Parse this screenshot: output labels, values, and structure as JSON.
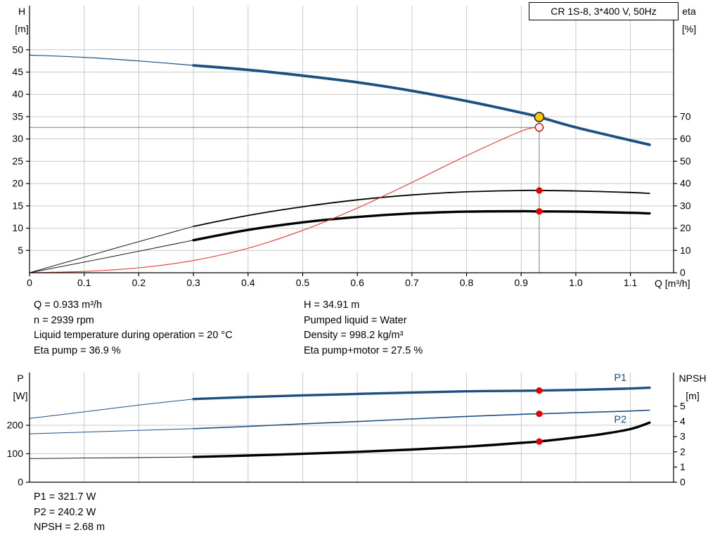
{
  "axis_titles": {
    "h": [
      "H",
      "[m]"
    ],
    "eta": [
      "eta",
      "[%]"
    ],
    "p": [
      "P",
      "[W]"
    ],
    "npsh": [
      "NPSH",
      "[m]"
    ],
    "q": "Q [m³/h]"
  },
  "info_block": {
    "left": [
      "Q = 0.933 m³/h",
      "n = 2939 rpm",
      "Liquid temperature during operation = 20 °C",
      "Eta pump = 36.9 %"
    ],
    "right": [
      "H = 34.91 m",
      "Pumped liquid = Water",
      "Density = 998.2 kg/m³",
      "Eta pump+motor = 27.5 %"
    ]
  },
  "result_block": [
    "P1 = 321.7 W",
    "P2 = 240.2 W",
    "NPSH = 2.68 m"
  ],
  "colors": {
    "blue": "#1d5082",
    "black": "#000000",
    "red": "#e03a2e",
    "grid": "#c9c9c9",
    "axis": "#000000",
    "guide": "#7d7d7d",
    "marker_red": "#e60000",
    "marker_yellow": "#ffc800",
    "marker_ring": "#333333",
    "text": "#000000"
  },
  "chart_data": [
    {
      "type": "line",
      "name": "performance-chart",
      "title": "CR 1S-8, 3*400 V, 50Hz",
      "area": {
        "l": 42,
        "r": 958,
        "t": 8,
        "b": 388
      },
      "x": {
        "label": "Q [m³/h]",
        "min": 0,
        "max": 1.179,
        "show_ticks": true,
        "ticks": [
          [
            0,
            "0"
          ],
          [
            0.1,
            "0.1"
          ],
          [
            0.2,
            "0.2"
          ],
          [
            0.3,
            "0.3"
          ],
          [
            0.4,
            "0.4"
          ],
          [
            0.5,
            "0.5"
          ],
          [
            0.6,
            "0.6"
          ],
          [
            0.7,
            "0.7"
          ],
          [
            0.8,
            "0.8"
          ],
          [
            0.9,
            "0.9"
          ],
          [
            1.0,
            "1.0"
          ],
          [
            1.1,
            "1.1"
          ]
        ]
      },
      "y_left": {
        "label": "H [m]",
        "min": 0,
        "max": 59.9,
        "ticks": [
          [
            5,
            "5"
          ],
          [
            10,
            "10"
          ],
          [
            15,
            "15"
          ],
          [
            20,
            "20"
          ],
          [
            25,
            "25"
          ],
          [
            30,
            "30"
          ],
          [
            35,
            "35"
          ],
          [
            40,
            "40"
          ],
          [
            45,
            "45"
          ],
          [
            50,
            "50"
          ]
        ]
      },
      "y_right": {
        "label": "eta [%]",
        "min": 0,
        "max": 119.8,
        "ticks": [
          [
            0,
            "0"
          ],
          [
            10,
            "10"
          ],
          [
            20,
            "20"
          ],
          [
            30,
            "30"
          ],
          [
            40,
            "40"
          ],
          [
            50,
            "50"
          ],
          [
            60,
            "60"
          ],
          [
            70,
            "70"
          ]
        ]
      },
      "duty_point": {
        "q_m3h": 0.933,
        "h_m": 34.91,
        "eta_pump_pct": 36.9,
        "eta_pump_motor_pct": 27.5
      },
      "series": [
        {
          "name": "h-curve-low-flow",
          "axis": "left",
          "color": "blue",
          "width": 1.2,
          "points": [
            [
              0,
              48.8
            ],
            [
              0.1,
              48.3
            ],
            [
              0.2,
              47.5
            ],
            [
              0.3,
              46.5
            ]
          ]
        },
        {
          "name": "h-curve",
          "axis": "left",
          "color": "blue",
          "width": 3.8,
          "points": [
            [
              0.3,
              46.5
            ],
            [
              0.4,
              45.5
            ],
            [
              0.5,
              44.2
            ],
            [
              0.6,
              42.7
            ],
            [
              0.7,
              40.8
            ],
            [
              0.8,
              38.5
            ],
            [
              0.9,
              35.9
            ],
            [
              0.933,
              34.91
            ],
            [
              1.0,
              32.6
            ],
            [
              1.1,
              29.7
            ],
            [
              1.135,
              28.7
            ]
          ]
        },
        {
          "name": "eta-pump-low-flow",
          "axis": "right",
          "color": "black",
          "width": 0.9,
          "points": [
            [
              0,
              0
            ],
            [
              0.15,
              10.5
            ],
            [
              0.3,
              20.8
            ]
          ]
        },
        {
          "name": "eta-pump-curve",
          "axis": "right",
          "color": "black",
          "width": 1.8,
          "points": [
            [
              0.3,
              20.8
            ],
            [
              0.4,
              25.7
            ],
            [
              0.5,
              29.6
            ],
            [
              0.6,
              32.7
            ],
            [
              0.7,
              34.9
            ],
            [
              0.8,
              36.3
            ],
            [
              0.9,
              36.9
            ],
            [
              0.933,
              36.9
            ],
            [
              1.0,
              36.7
            ],
            [
              1.1,
              36.0
            ],
            [
              1.135,
              35.6
            ]
          ]
        },
        {
          "name": "eta-pump-motor-low-flow",
          "axis": "right",
          "color": "black",
          "width": 0.9,
          "points": [
            [
              0,
              0
            ],
            [
              0.15,
              7.2
            ],
            [
              0.3,
              14.6
            ]
          ]
        },
        {
          "name": "eta-pump-motor-curve",
          "axis": "right",
          "color": "black",
          "width": 3.4,
          "points": [
            [
              0.3,
              14.6
            ],
            [
              0.4,
              19.2
            ],
            [
              0.5,
              22.6
            ],
            [
              0.6,
              25.0
            ],
            [
              0.7,
              26.6
            ],
            [
              0.8,
              27.4
            ],
            [
              0.9,
              27.6
            ],
            [
              0.933,
              27.5
            ],
            [
              1.0,
              27.4
            ],
            [
              1.1,
              26.9
            ],
            [
              1.135,
              26.6
            ]
          ]
        },
        {
          "name": "eta-reference-curve",
          "axis": "right",
          "color": "red",
          "width": 1.1,
          "points": [
            [
              0,
              0
            ],
            [
              0.1,
              0.6
            ],
            [
              0.2,
              2.2
            ],
            [
              0.3,
              5.5
            ],
            [
              0.4,
              11
            ],
            [
              0.5,
              19
            ],
            [
              0.6,
              29
            ],
            [
              0.7,
              40.5
            ],
            [
              0.8,
              52.5
            ],
            [
              0.9,
              63.5
            ],
            [
              0.933,
              65.2
            ]
          ]
        }
      ],
      "guide_lines": [
        {
          "q1": 0.933,
          "v1": 0,
          "q2": 0.933,
          "v2": 34.91,
          "axis": "left"
        },
        {
          "q1": 0,
          "v1": 65.2,
          "q2": 0.933,
          "v2": 65.2,
          "axis": "right"
        }
      ],
      "markers": [
        {
          "type": "open",
          "q": 0.933,
          "v": 65.2,
          "axis": "right"
        },
        {
          "type": "dot",
          "q": 0.933,
          "v": 36.9,
          "axis": "right"
        },
        {
          "type": "dot",
          "q": 0.933,
          "v": 27.5,
          "axis": "right"
        },
        {
          "type": "duty",
          "q": 0.933,
          "v": 34.91,
          "axis": "left"
        }
      ]
    },
    {
      "type": "line",
      "name": "power-npsh-chart",
      "title": "",
      "area": {
        "l": 42,
        "r": 958,
        "t": 530,
        "b": 686
      },
      "x": {
        "label": "",
        "min": 0,
        "max": 1.179,
        "show_ticks": false,
        "ticks": [
          [
            0,
            "0"
          ],
          [
            0.1,
            "0.1"
          ],
          [
            0.2,
            "0.2"
          ],
          [
            0.3,
            "0.3"
          ],
          [
            0.4,
            "0.4"
          ],
          [
            0.5,
            "0.5"
          ],
          [
            0.6,
            "0.6"
          ],
          [
            0.7,
            "0.7"
          ],
          [
            0.8,
            "0.8"
          ],
          [
            0.9,
            "0.9"
          ],
          [
            1.0,
            "1.0"
          ],
          [
            1.1,
            "1.1"
          ]
        ]
      },
      "y_left": {
        "label": "P [W]",
        "min": 0,
        "max": 385,
        "ticks": [
          [
            0,
            "0"
          ],
          [
            100,
            "100"
          ],
          [
            200,
            "200"
          ]
        ]
      },
      "y_right": {
        "label": "NPSH [m]",
        "min": 0,
        "max": 7.22,
        "ticks": [
          [
            0,
            "0"
          ],
          [
            1,
            "1"
          ],
          [
            2,
            "2"
          ],
          [
            3,
            "3"
          ],
          [
            4,
            "4"
          ],
          [
            5,
            "5"
          ]
        ]
      },
      "duty_point": {
        "q_m3h": 0.933,
        "p1_w": 321.7,
        "p2_w": 240.2,
        "npsh_m": 2.68
      },
      "series": [
        {
          "name": "p1-low-flow",
          "axis": "left",
          "color": "blue",
          "width": 1.0,
          "points": [
            [
              0,
              224
            ],
            [
              0.1,
              247
            ],
            [
              0.2,
              271
            ],
            [
              0.3,
              292
            ]
          ]
        },
        {
          "name": "p1-curve",
          "axis": "left",
          "color": "blue",
          "width": 3.4,
          "points": [
            [
              0.3,
              292
            ],
            [
              0.4,
              299
            ],
            [
              0.5,
              305
            ],
            [
              0.6,
              310
            ],
            [
              0.7,
              315
            ],
            [
              0.8,
              319
            ],
            [
              0.9,
              321.2
            ],
            [
              0.933,
              321.7
            ],
            [
              1.0,
              324
            ],
            [
              1.1,
              329
            ],
            [
              1.135,
              332
            ]
          ]
        },
        {
          "name": "p2-low-flow",
          "axis": "left",
          "color": "blue",
          "width": 1.0,
          "points": [
            [
              0,
              170
            ],
            [
              0.1,
              176
            ],
            [
              0.2,
              182
            ],
            [
              0.3,
              188
            ]
          ]
        },
        {
          "name": "p2-curve",
          "axis": "left",
          "color": "blue",
          "width": 1.6,
          "points": [
            [
              0.3,
              188
            ],
            [
              0.4,
              196
            ],
            [
              0.5,
              205
            ],
            [
              0.6,
              213
            ],
            [
              0.7,
              222
            ],
            [
              0.8,
              231
            ],
            [
              0.9,
              238.5
            ],
            [
              0.933,
              240.2
            ],
            [
              1.0,
              244
            ],
            [
              1.1,
              250
            ],
            [
              1.135,
              253
            ]
          ]
        },
        {
          "name": "npsh-low-flow",
          "axis": "right",
          "color": "black",
          "width": 0.9,
          "points": [
            [
              0,
              1.56
            ],
            [
              0.1,
              1.59
            ],
            [
              0.2,
              1.62
            ],
            [
              0.3,
              1.66
            ]
          ]
        },
        {
          "name": "npsh-curve",
          "axis": "right",
          "color": "black",
          "width": 3.4,
          "points": [
            [
              0.3,
              1.66
            ],
            [
              0.4,
              1.76
            ],
            [
              0.5,
              1.87
            ],
            [
              0.6,
              2.0
            ],
            [
              0.7,
              2.15
            ],
            [
              0.8,
              2.34
            ],
            [
              0.9,
              2.59
            ],
            [
              0.933,
              2.68
            ],
            [
              1.0,
              2.95
            ],
            [
              1.05,
              3.18
            ],
            [
              1.1,
              3.5
            ],
            [
              1.135,
              3.92
            ]
          ]
        }
      ],
      "guide_lines": [],
      "markers": [
        {
          "type": "dot",
          "q": 0.933,
          "v": 321.7,
          "axis": "left"
        },
        {
          "type": "dot",
          "q": 0.933,
          "v": 240.2,
          "axis": "left"
        },
        {
          "type": "dot",
          "q": 0.933,
          "v": 2.68,
          "axis": "right"
        }
      ],
      "labels": [
        {
          "text": "P1",
          "q": 1.07,
          "v": 355,
          "axis": "left",
          "color": "blue"
        },
        {
          "text": "P2",
          "q": 1.07,
          "v": 209,
          "axis": "left",
          "color": "blue"
        }
      ]
    }
  ]
}
